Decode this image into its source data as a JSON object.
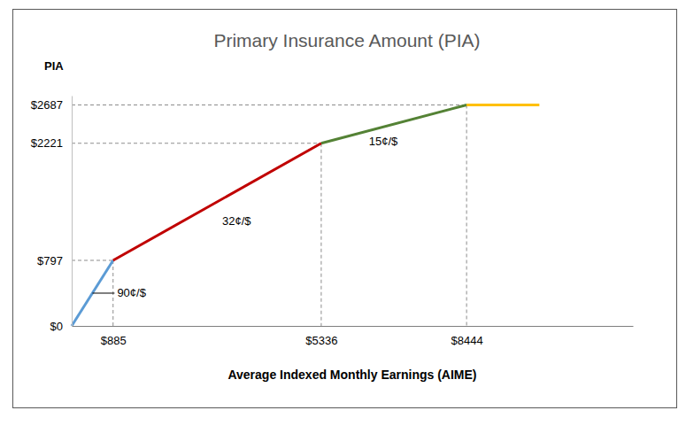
{
  "chart_data": {
    "type": "line",
    "title": "Primary Insurance Amount (PIA)",
    "x_label": "Average Indexed Monthly Earnings (AIME)",
    "y_label": "PIA",
    "x": [
      0,
      885,
      5336,
      8444,
      10000
    ],
    "values": [
      0,
      797,
      2221,
      2687,
      2687
    ],
    "colors": [
      "#5b9bd5",
      "#c00000",
      "#548235",
      "#ffc000"
    ],
    "annotations": [
      "90¢/$",
      "32¢/$",
      "15¢/$"
    ],
    "xlim": [
      0,
      12000
    ],
    "ylim": [
      0,
      2800
    ],
    "xticks": [
      {
        "value": 885,
        "label": "$885"
      },
      {
        "value": 5336,
        "label": "$5336"
      },
      {
        "value": 8444,
        "label": "$8444"
      }
    ],
    "yticks": [
      {
        "value": 0,
        "label": "$0"
      },
      {
        "value": 797,
        "label": "$797"
      },
      {
        "value": 2221,
        "label": "$2221"
      },
      {
        "value": 2687,
        "label": "$2687"
      }
    ]
  }
}
